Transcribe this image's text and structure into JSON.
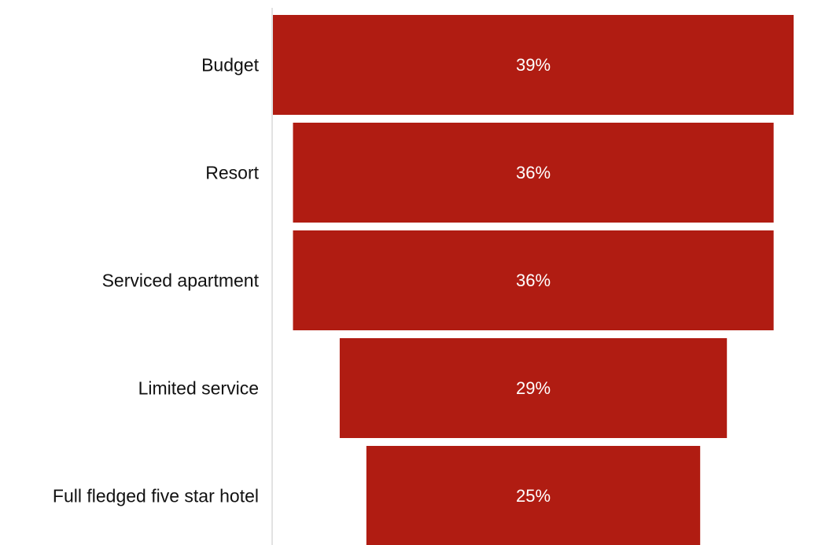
{
  "chart_data": {
    "type": "bar",
    "subtype": "funnel",
    "orientation": "horizontal",
    "categories": [
      "Budget",
      "Resort",
      "Serviced apartment",
      "Limited service",
      "Full fledged five star hotel"
    ],
    "values": [
      39,
      36,
      36,
      29,
      25
    ],
    "value_labels": [
      "39%",
      "36%",
      "36%",
      "29%",
      "25%"
    ],
    "unit": "%",
    "title": "",
    "xlabel": "",
    "ylabel": "",
    "grid": false,
    "legend": "none",
    "colors": {
      "bar": "#b01c12",
      "axis": "#d9d9d9",
      "category_text": "#111111",
      "value_text": "#ffffff"
    }
  }
}
